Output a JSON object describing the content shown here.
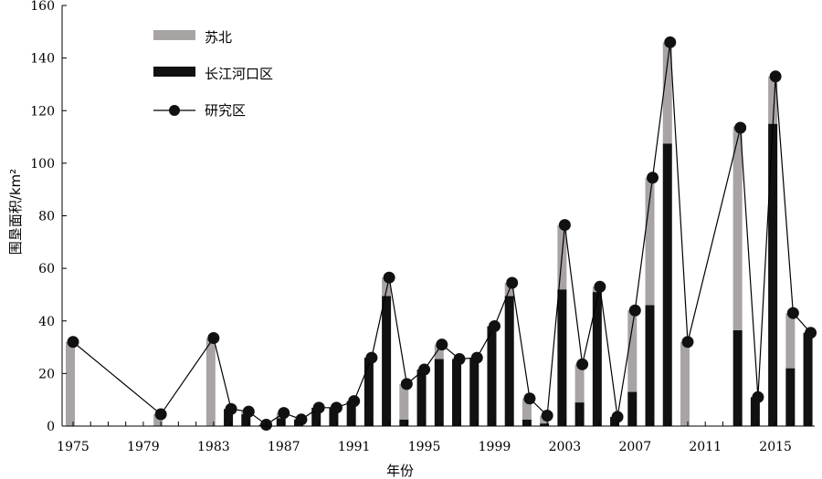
{
  "chart_data": {
    "type": "bar",
    "xlabel": "年份",
    "ylabel": "围垦面积/km²",
    "ylim": [
      0,
      160
    ],
    "yticks": [
      "0",
      "20",
      "40",
      "60",
      "80",
      "100",
      "120",
      "140",
      "160"
    ],
    "xlim": [
      1975,
      2017
    ],
    "xticks": [
      "1975",
      "1979",
      "1983",
      "1987",
      "1991",
      "1995",
      "1999",
      "2003",
      "2007",
      "2011",
      "2015"
    ],
    "legend_position": "top-left",
    "colors": {
      "subei": "#a9a4a4",
      "changjiang": "#111111",
      "total": "#000000"
    },
    "legend": [
      "苏北",
      "长江河口区",
      "研究区"
    ],
    "series": [
      {
        "name": "苏北",
        "kind": "stacked-bar",
        "x": [
          1975,
          1980,
          1983,
          1984,
          1985,
          1986,
          1987,
          1988,
          1989,
          1990,
          1991,
          1992,
          1993,
          1994,
          1995,
          1996,
          1997,
          1998,
          1999,
          2000,
          2001,
          2002,
          2003,
          2004,
          2005,
          2006,
          2007,
          2008,
          2009,
          2010,
          2013,
          2014,
          2015,
          2016,
          2017
        ],
        "values": [
          32,
          4.5,
          33.5,
          0,
          1,
          0,
          2,
          0,
          0,
          0,
          0,
          0,
          7,
          13.5,
          0,
          5.5,
          0,
          0,
          0,
          5,
          8,
          3,
          24.5,
          14.5,
          2,
          0,
          31,
          48.5,
          38.5,
          32,
          77.5,
          0,
          18,
          21,
          0
        ]
      },
      {
        "name": "长江河口区",
        "kind": "stacked-bar",
        "x": [
          1975,
          1980,
          1983,
          1984,
          1985,
          1986,
          1987,
          1988,
          1989,
          1990,
          1991,
          1992,
          1993,
          1994,
          1995,
          1996,
          1997,
          1998,
          1999,
          2000,
          2001,
          2002,
          2003,
          2004,
          2005,
          2006,
          2007,
          2008,
          2009,
          2010,
          2013,
          2014,
          2015,
          2016,
          2017
        ],
        "values": [
          0,
          0,
          0,
          6.5,
          4.5,
          0.5,
          3,
          2.5,
          7,
          7,
          9.5,
          26,
          49.5,
          2.5,
          21.5,
          25.5,
          25.5,
          26,
          38,
          49.5,
          2.5,
          1,
          52,
          9,
          51,
          3.5,
          13,
          46,
          107.5,
          0,
          36.5,
          11,
          115,
          22,
          35.5
        ]
      },
      {
        "name": "研究区",
        "kind": "line",
        "x": [
          1975,
          1980,
          1983,
          1984,
          1985,
          1986,
          1987,
          1988,
          1989,
          1990,
          1991,
          1992,
          1993,
          1994,
          1995,
          1996,
          1997,
          1998,
          1999,
          2000,
          2001,
          2002,
          2003,
          2004,
          2005,
          2006,
          2007,
          2008,
          2009,
          2010,
          2013,
          2014,
          2015,
          2016,
          2017
        ],
        "values": [
          32,
          4.5,
          33.5,
          6.5,
          5.5,
          0.5,
          5,
          2.5,
          7,
          7,
          9.5,
          26,
          56.5,
          16,
          21.5,
          31,
          25.5,
          26,
          38,
          54.5,
          10.5,
          4,
          76.5,
          23.5,
          53,
          3.5,
          44,
          94.5,
          146,
          32,
          113.5,
          11,
          133,
          43,
          35.5
        ]
      }
    ]
  }
}
